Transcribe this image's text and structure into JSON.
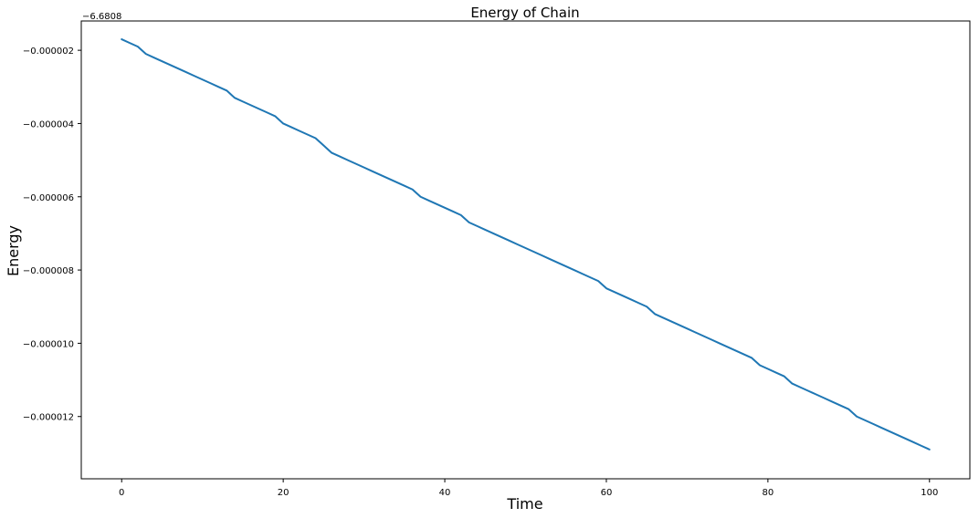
{
  "chart_data": {
    "type": "line",
    "title": "Energy of Chain",
    "xlabel": "Time",
    "ylabel": "Energy",
    "offset_text": "−6.6808",
    "offset_value": -6.6808,
    "xlim": [
      -5,
      105
    ],
    "ylim": [
      -1.37e-05,
      -1.2e-06
    ],
    "xticks": [
      0,
      20,
      40,
      60,
      80,
      100
    ],
    "xtick_labels": [
      "0",
      "20",
      "40",
      "60",
      "80",
      "100"
    ],
    "yticks": [
      -2e-06,
      -4e-06,
      -6e-06,
      -8e-06,
      -1e-05,
      -1.2e-05
    ],
    "ytick_labels": [
      "−0.000002",
      "−0.000004",
      "−0.000006",
      "−0.000008",
      "−0.000010",
      "−0.000012"
    ],
    "grid": false,
    "series": [
      {
        "color": "#1f77b4",
        "x": [
          0,
          1,
          2,
          3,
          4,
          5,
          6,
          7,
          8,
          9,
          10,
          11,
          12,
          13,
          14,
          15,
          16,
          17,
          18,
          19,
          20,
          21,
          22,
          23,
          24,
          25,
          26,
          27,
          28,
          29,
          30,
          31,
          32,
          33,
          34,
          35,
          36,
          37,
          38,
          39,
          40,
          41,
          42,
          43,
          44,
          45,
          46,
          47,
          48,
          49,
          50,
          51,
          52,
          53,
          54,
          55,
          56,
          57,
          58,
          59,
          60,
          61,
          62,
          63,
          64,
          65,
          66,
          67,
          68,
          69,
          70,
          71,
          72,
          73,
          74,
          75,
          76,
          77,
          78,
          79,
          80,
          81,
          82,
          83,
          84,
          85,
          86,
          87,
          88,
          89,
          90,
          91,
          92,
          93,
          94,
          95,
          96,
          97,
          98,
          99,
          100
        ],
        "y": [
          -1.7e-06,
          -1.8e-06,
          -1.9e-06,
          -2.1e-06,
          -2.2e-06,
          -2.3e-06,
          -2.4e-06,
          -2.5e-06,
          -2.6e-06,
          -2.7e-06,
          -2.8e-06,
          -2.9e-06,
          -3e-06,
          -3.1e-06,
          -3.3e-06,
          -3.4e-06,
          -3.5e-06,
          -3.6e-06,
          -3.7e-06,
          -3.8e-06,
          -4e-06,
          -4.1e-06,
          -4.2e-06,
          -4.3e-06,
          -4.4e-06,
          -4.6e-06,
          -4.8e-06,
          -4.9e-06,
          -5e-06,
          -5.1e-06,
          -5.2e-06,
          -5.3e-06,
          -5.4e-06,
          -5.5e-06,
          -5.6e-06,
          -5.7e-06,
          -5.8e-06,
          -6e-06,
          -6.1e-06,
          -6.2e-06,
          -6.3e-06,
          -6.4e-06,
          -6.5e-06,
          -6.7e-06,
          -6.8e-06,
          -6.9e-06,
          -7e-06,
          -7.1e-06,
          -7.2e-06,
          -7.3e-06,
          -7.4e-06,
          -7.5e-06,
          -7.6e-06,
          -7.7e-06,
          -7.8e-06,
          -7.9e-06,
          -8e-06,
          -8.1e-06,
          -8.2e-06,
          -8.3e-06,
          -8.5e-06,
          -8.6e-06,
          -8.7e-06,
          -8.8e-06,
          -8.9e-06,
          -9e-06,
          -9.2e-06,
          -9.3e-06,
          -9.4e-06,
          -9.5e-06,
          -9.6e-06,
          -9.7e-06,
          -9.8e-06,
          -9.9e-06,
          -1e-05,
          -1.01e-05,
          -1.02e-05,
          -1.03e-05,
          -1.04e-05,
          -1.06e-05,
          -1.07e-05,
          -1.08e-05,
          -1.09e-05,
          -1.11e-05,
          -1.12e-05,
          -1.13e-05,
          -1.14e-05,
          -1.15e-05,
          -1.16e-05,
          -1.17e-05,
          -1.18e-05,
          -1.2e-05,
          -1.21e-05,
          -1.22e-05,
          -1.23e-05,
          -1.24e-05,
          -1.25e-05,
          -1.26e-05,
          -1.27e-05,
          -1.28e-05,
          -1.29e-05
        ]
      }
    ]
  }
}
